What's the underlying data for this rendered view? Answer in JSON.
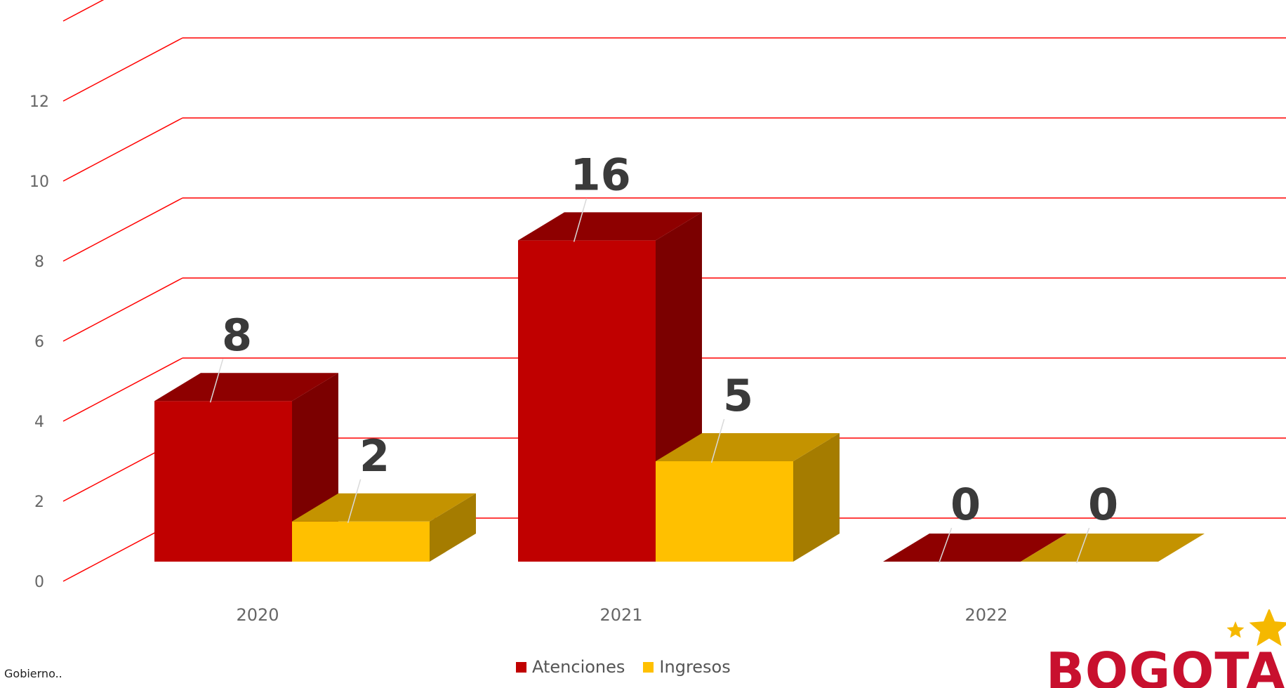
{
  "chart_data": {
    "type": "bar",
    "style": "3d-clustered-column",
    "categories": [
      "2020",
      "2021",
      "2022"
    ],
    "series": [
      {
        "name": "Atenciones",
        "values": [
          8,
          16,
          0
        ],
        "data_labels": [
          "8",
          "16",
          "0"
        ],
        "color": "#c00000",
        "side_color": "#7b0000",
        "top_color": "#8e0000"
      },
      {
        "name": "Ingresos",
        "values": [
          2,
          5,
          0
        ],
        "data_labels": [
          "2",
          "5",
          "0"
        ],
        "color": "#ffc000",
        "side_color": "#a57c00",
        "top_color": "#c49300"
      }
    ],
    "y_ticks": [
      "0",
      "2",
      "4",
      "6",
      "8",
      "10",
      "12"
    ],
    "ylim": [
      0,
      14
    ],
    "grid": true,
    "grid_color": "#ff0000",
    "legend_position": "bottom",
    "title": "",
    "xlabel": "",
    "ylabel": ""
  },
  "footer": {
    "note": "Gobierno.."
  },
  "logo": {
    "text": "BOGOTA",
    "color": "#c8102e",
    "star_color": "#f5b800"
  }
}
